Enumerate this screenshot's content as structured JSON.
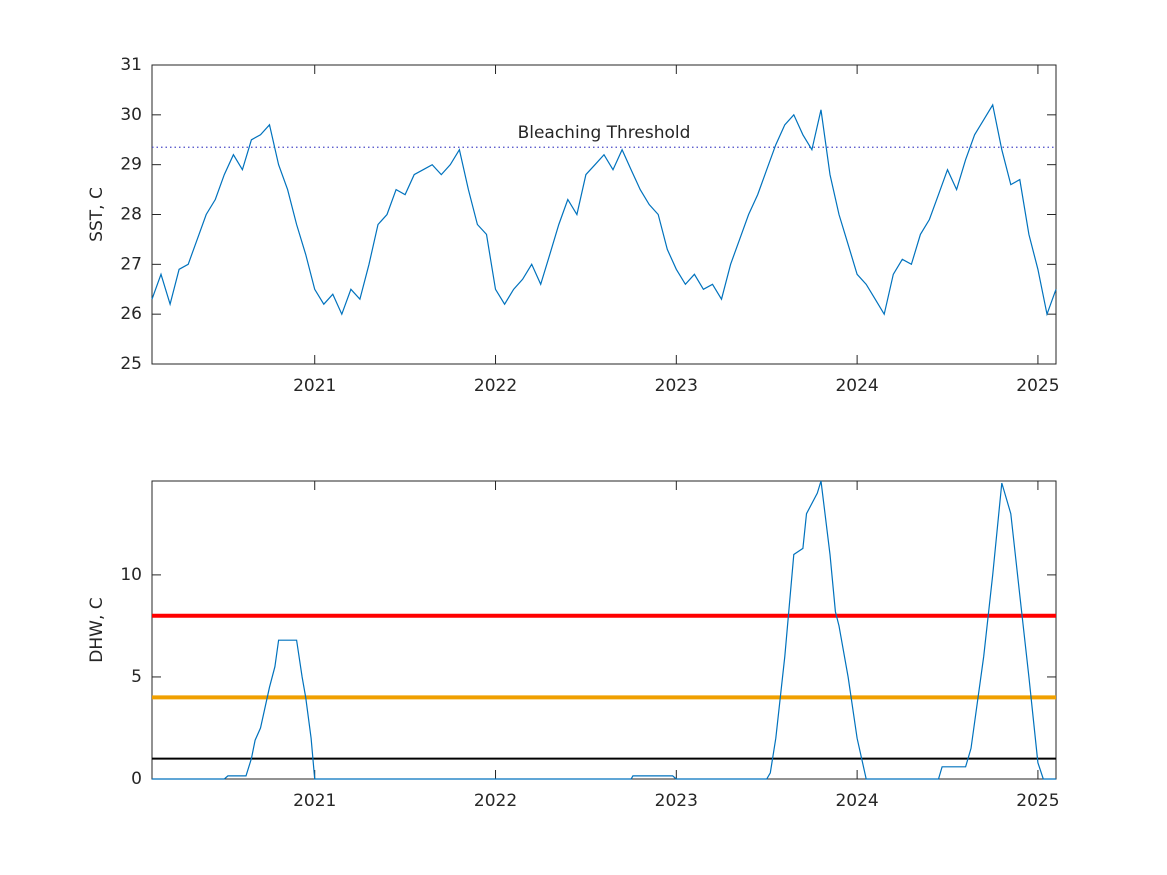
{
  "chart_data": [
    {
      "type": "line",
      "ylabel": "SST, C",
      "xlim": [
        2020.1,
        2025.1
      ],
      "xticks": [
        2021,
        2022,
        2023,
        2024,
        2025
      ],
      "ylim": [
        25,
        31
      ],
      "yticks": [
        25,
        26,
        27,
        28,
        29,
        30,
        31
      ],
      "threshold": {
        "value": 29.35,
        "label": "Bleaching Threshold",
        "color": "#4b4bc8"
      },
      "x": [
        2020.1,
        2020.15,
        2020.2,
        2020.25,
        2020.3,
        2020.35,
        2020.4,
        2020.45,
        2020.5,
        2020.55,
        2020.6,
        2020.65,
        2020.7,
        2020.75,
        2020.8,
        2020.85,
        2020.9,
        2020.95,
        2021.0,
        2021.05,
        2021.1,
        2021.15,
        2021.2,
        2021.25,
        2021.3,
        2021.35,
        2021.4,
        2021.45,
        2021.5,
        2021.55,
        2021.6,
        2021.65,
        2021.7,
        2021.75,
        2021.8,
        2021.85,
        2021.9,
        2021.95,
        2022.0,
        2022.05,
        2022.1,
        2022.15,
        2022.2,
        2022.25,
        2022.3,
        2022.35,
        2022.4,
        2022.45,
        2022.5,
        2022.55,
        2022.6,
        2022.65,
        2022.7,
        2022.75,
        2022.8,
        2022.85,
        2022.9,
        2022.95,
        2023.0,
        2023.05,
        2023.1,
        2023.15,
        2023.2,
        2023.25,
        2023.3,
        2023.35,
        2023.4,
        2023.45,
        2023.5,
        2023.55,
        2023.6,
        2023.65,
        2023.7,
        2023.75,
        2023.8,
        2023.85,
        2023.9,
        2023.95,
        2024.0,
        2024.05,
        2024.1,
        2024.15,
        2024.2,
        2024.25,
        2024.3,
        2024.35,
        2024.4,
        2024.45,
        2024.5,
        2024.55,
        2024.6,
        2024.65,
        2024.7,
        2024.75,
        2024.8,
        2024.85,
        2024.9,
        2024.95,
        2025.0,
        2025.05,
        2025.1
      ],
      "series": [
        {
          "color": "#0072bd",
          "values": [
            26.3,
            26.8,
            26.2,
            26.9,
            27.0,
            27.5,
            28.0,
            28.3,
            28.8,
            29.2,
            28.9,
            29.5,
            29.6,
            29.8,
            29.0,
            28.5,
            27.8,
            27.2,
            26.5,
            26.2,
            26.4,
            26.0,
            26.5,
            26.3,
            27.0,
            27.8,
            28.0,
            28.5,
            28.4,
            28.8,
            28.9,
            29.0,
            28.8,
            29.0,
            29.3,
            28.5,
            27.8,
            27.6,
            26.5,
            26.2,
            26.5,
            26.7,
            27.0,
            26.6,
            27.2,
            27.8,
            28.3,
            28.0,
            28.8,
            29.0,
            29.2,
            28.9,
            29.3,
            28.9,
            28.5,
            28.2,
            28.0,
            27.3,
            26.9,
            26.6,
            26.8,
            26.5,
            26.6,
            26.3,
            27.0,
            27.5,
            28.0,
            28.4,
            28.9,
            29.4,
            29.8,
            30.0,
            29.6,
            29.3,
            30.1,
            28.8,
            28.0,
            27.4,
            26.8,
            26.6,
            26.3,
            26.0,
            26.8,
            27.1,
            27.0,
            27.6,
            27.9,
            28.4,
            28.9,
            28.5,
            29.1,
            29.6,
            29.9,
            30.2,
            29.3,
            28.6,
            28.7,
            27.6,
            26.9,
            26.0,
            26.5
          ]
        }
      ]
    },
    {
      "type": "line",
      "ylabel": "DHW, C",
      "xlim": [
        2020.1,
        2025.1
      ],
      "xticks": [
        2021,
        2022,
        2023,
        2024,
        2025
      ],
      "ylim": [
        0,
        14.6
      ],
      "yticks": [
        0,
        5,
        10
      ],
      "reference_lines": [
        {
          "value": 1,
          "color": "#000000"
        },
        {
          "value": 4,
          "color": "#f0a000"
        },
        {
          "value": 8,
          "color": "#ff0000"
        }
      ],
      "x": [
        2020.1,
        2020.5,
        2020.52,
        2020.62,
        2020.65,
        2020.67,
        2020.7,
        2020.75,
        2020.78,
        2020.8,
        2020.9,
        2020.93,
        2020.95,
        2020.98,
        2021.0,
        2022.75,
        2022.76,
        2022.98,
        2023.0,
        2023.5,
        2023.52,
        2023.55,
        2023.6,
        2023.63,
        2023.65,
        2023.7,
        2023.72,
        2023.78,
        2023.8,
        2023.85,
        2023.88,
        2023.9,
        2023.95,
        2024.0,
        2024.05,
        2024.45,
        2024.47,
        2024.6,
        2024.63,
        2024.7,
        2024.75,
        2024.8,
        2024.85,
        2024.9,
        2024.95,
        2025.0,
        2025.03,
        2025.1
      ],
      "series": [
        {
          "color": "#0072bd",
          "values": [
            0,
            0,
            0.15,
            0.15,
            1.0,
            1.9,
            2.5,
            4.5,
            5.5,
            6.8,
            6.8,
            5.0,
            4.0,
            2.0,
            0,
            0,
            0.15,
            0.15,
            0,
            0,
            0.3,
            2,
            6,
            9,
            11,
            11.3,
            13,
            14,
            14.6,
            11,
            8.2,
            7.5,
            5,
            2,
            0,
            0,
            0.6,
            0.6,
            1.5,
            6,
            10,
            14.5,
            13,
            9,
            5,
            0.8,
            0,
            0
          ]
        }
      ]
    }
  ]
}
